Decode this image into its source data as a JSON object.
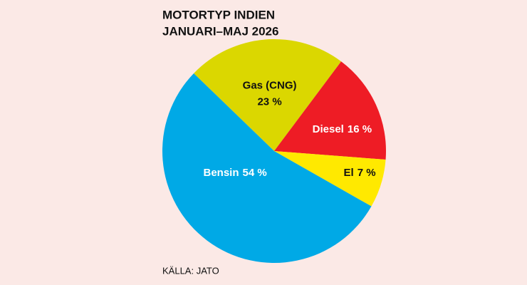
{
  "chart_data": {
    "type": "pie",
    "title": [
      "MOTORTYP INDIEN",
      "JANUARI–MAJ 2026"
    ],
    "source": "KÄLLA: JATO",
    "categories": [
      "Gas (CNG)",
      "Diesel",
      "El",
      "Bensin"
    ],
    "values": [
      23,
      16,
      7,
      54
    ],
    "value_labels": [
      "23 %",
      "16 %",
      "7 %",
      "54 %"
    ],
    "colors": [
      "#dbd700",
      "#ee1c25",
      "#ffe900",
      "#00a9e6"
    ],
    "label_colors": [
      "#111111",
      "#ffffff",
      "#111111",
      "#ffffff"
    ]
  }
}
